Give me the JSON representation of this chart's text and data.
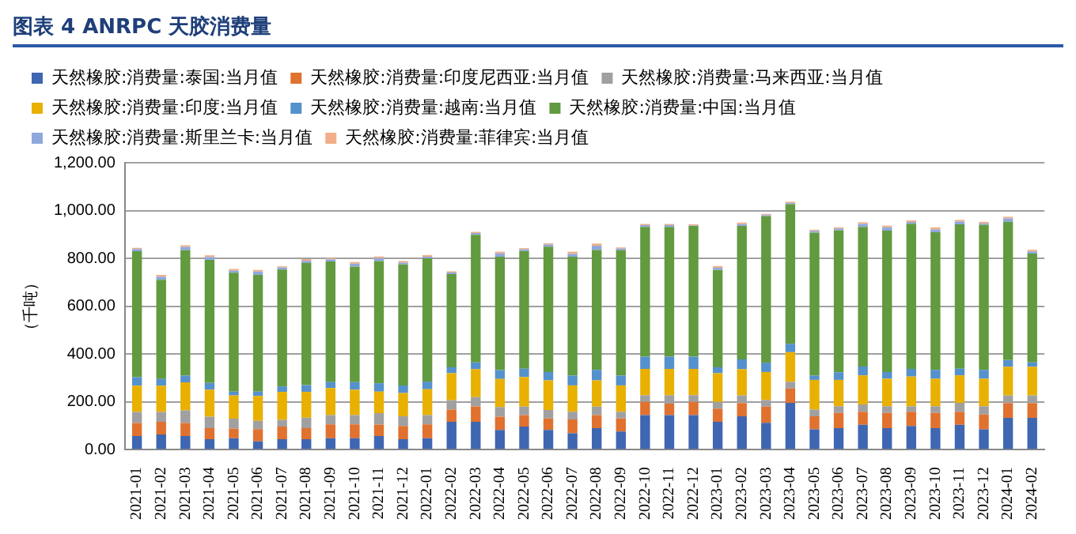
{
  "chart_data": {
    "type": "bar",
    "title": "图表 4 ANRPC 天胶消费量",
    "ylabel": "（千吨）",
    "stacked": true,
    "grid": "y",
    "legend": "top",
    "categories": [
      "2021-01",
      "2021-02",
      "2021-03",
      "2021-04",
      "2021-05",
      "2021-06",
      "2021-07",
      "2021-08",
      "2021-09",
      "2021-10",
      "2021-11",
      "2021-12",
      "2022-01",
      "2022-02",
      "2022-03",
      "2022-04",
      "2022-05",
      "2022-06",
      "2022-07",
      "2022-08",
      "2022-09",
      "2022-10",
      "2022-11",
      "2022-12",
      "2023-01",
      "2023-02",
      "2023-03",
      "2023-04",
      "2023-05",
      "2023-06",
      "2023-07",
      "2023-08",
      "2023-09",
      "2023-10",
      "2023-11",
      "2023-12",
      "2024-01",
      "2024-02"
    ],
    "ylim": [
      0,
      1200
    ],
    "yticks": [
      {
        "value": 0,
        "label": "0.00"
      },
      {
        "value": 200,
        "label": "200.00"
      },
      {
        "value": 400,
        "label": "400.00"
      },
      {
        "value": 600,
        "label": "600.00"
      },
      {
        "value": 800,
        "label": "800.00"
      },
      {
        "value": 1000,
        "label": "1,000.00"
      },
      {
        "value": 1200,
        "label": "1,200.00"
      }
    ],
    "series": [
      {
        "name": "天然橡胶:消费量:泰国:当月值",
        "color": "#3f66b0",
        "values": [
          57,
          64,
          57,
          44,
          48,
          35,
          44,
          44,
          48,
          48,
          57,
          44,
          48,
          117,
          117,
          83,
          97,
          83,
          69,
          90,
          76,
          145,
          145,
          145,
          117,
          140,
          113,
          196,
          85,
          90,
          104,
          90,
          99,
          90,
          104,
          85,
          133,
          133
        ]
      },
      {
        "name": "天然橡胶:消费量:印度尼西亚:当月值",
        "color": "#e0712f",
        "values": [
          55,
          53,
          55,
          46,
          41,
          51,
          53,
          46,
          58,
          58,
          48,
          55,
          58,
          51,
          64,
          55,
          48,
          48,
          58,
          55,
          55,
          55,
          48,
          55,
          55,
          55,
          67,
          60,
          55,
          64,
          55,
          64,
          60,
          64,
          55,
          62,
          62,
          62
        ]
      },
      {
        "name": "天然橡胶:消费量:马来西亚:当月值",
        "color": "#a0a0a0",
        "values": [
          46,
          41,
          53,
          48,
          41,
          35,
          28,
          44,
          39,
          39,
          48,
          41,
          39,
          39,
          39,
          41,
          35,
          35,
          32,
          35,
          28,
          28,
          35,
          28,
          28,
          32,
          28,
          28,
          28,
          28,
          30,
          28,
          23,
          28,
          37,
          35,
          32,
          32
        ]
      },
      {
        "name": "天然橡胶:消费量:印度:当月值",
        "color": "#e8b000",
        "values": [
          110,
          110,
          117,
          113,
          97,
          104,
          117,
          108,
          113,
          106,
          90,
          97,
          108,
          113,
          117,
          117,
          124,
          124,
          110,
          110,
          110,
          110,
          110,
          110,
          120,
          110,
          117,
          124,
          124,
          110,
          122,
          115,
          124,
          115,
          115,
          115,
          120,
          120
        ]
      },
      {
        "name": "天然橡胶:消费量:越南:当月值",
        "color": "#5591cc",
        "values": [
          35,
          28,
          28,
          28,
          16,
          18,
          23,
          28,
          25,
          32,
          35,
          32,
          32,
          25,
          28,
          37,
          35,
          35,
          41,
          44,
          41,
          51,
          51,
          51,
          25,
          41,
          39,
          35,
          18,
          32,
          37,
          28,
          32,
          37,
          28,
          37,
          28,
          18
        ]
      },
      {
        "name": "天然橡胶:消费量:中国:当月值",
        "color": "#629a3f",
        "values": [
          527,
          414,
          524,
          515,
          497,
          488,
          488,
          511,
          504,
          483,
          511,
          506,
          515,
          389,
          534,
          474,
          492,
          524,
          497,
          501,
          524,
          543,
          543,
          547,
          407,
          558,
          612,
          584,
          598,
          594,
          584,
          591,
          607,
          575,
          603,
          607,
          578,
          455
        ]
      },
      {
        "name": "天然橡胶:消费量:斯里兰卡:当月值",
        "color": "#8fa8dc",
        "values": [
          9,
          14,
          14,
          12,
          9,
          14,
          9,
          9,
          9,
          12,
          12,
          7,
          7,
          7,
          7,
          14,
          7,
          9,
          12,
          18,
          7,
          7,
          7,
          2,
          9,
          7,
          5,
          5,
          7,
          7,
          12,
          14,
          7,
          12,
          12,
          5,
          14,
          9
        ]
      },
      {
        "name": "天然橡胶:消费量:菲律宾:当月值",
        "color": "#f2ae88",
        "values": [
          5,
          7,
          7,
          7,
          7,
          7,
          5,
          7,
          5,
          7,
          7,
          7,
          7,
          5,
          5,
          7,
          5,
          5,
          9,
          9,
          5,
          5,
          5,
          5,
          7,
          7,
          5,
          5,
          5,
          5,
          7,
          7,
          7,
          9,
          7,
          7,
          7,
          7
        ]
      }
    ]
  }
}
